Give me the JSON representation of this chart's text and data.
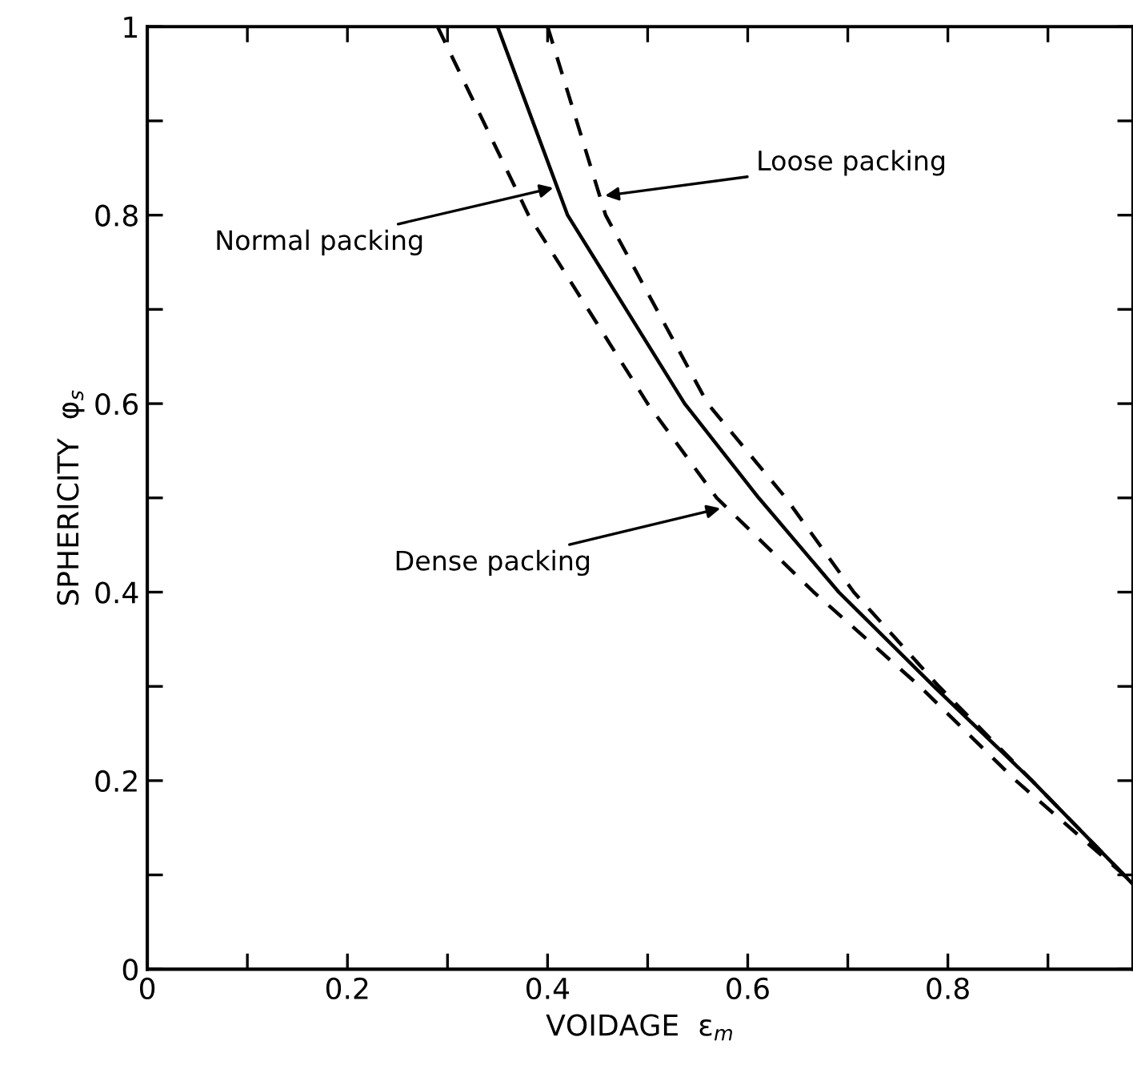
{
  "chart_data": {
    "type": "line",
    "xlabel": "VOIDAGE  ε$_{m}$",
    "ylabel": "SPHERICITY  φ$_{s}$",
    "xlim": [
      0,
      0.985
    ],
    "ylim": [
      0,
      1
    ],
    "xticks": [
      0,
      {
        "value": 0.1,
        "label": null
      },
      0.2,
      {
        "value": 0.3,
        "label": null
      },
      0.4,
      {
        "value": 0.5,
        "label": null
      },
      0.6,
      {
        "value": 0.7,
        "label": null
      },
      0.8,
      {
        "value": 0.9,
        "label": null
      }
    ],
    "yticks": [
      0,
      {
        "value": 0.1,
        "label": null
      },
      0.2,
      {
        "value": 0.3,
        "label": null
      },
      0.4,
      {
        "value": 0.5,
        "label": null
      },
      0.6,
      {
        "value": 0.7,
        "label": null
      },
      0.8,
      {
        "value": 0.9,
        "label": null
      },
      1
    ],
    "grid": false,
    "legend": false,
    "marker": "none",
    "series": [
      {
        "color": "#000000",
        "line_style": "dashed",
        "x": [
          0.29,
          0.381,
          0.5,
          0.569,
          0.666,
          0.772,
          0.868,
          0.976,
          0.985
        ],
        "values": [
          1,
          0.8,
          0.6,
          0.5,
          0.4,
          0.3,
          0.2,
          0.1,
          0.09
        ]
      },
      {
        "color": "#000000",
        "line_style": "solid",
        "x": [
          0.35,
          0.42,
          0.537,
          0.611,
          0.691,
          0.786,
          0.884,
          0.976,
          0.985
        ],
        "values": [
          1,
          0.8,
          0.6,
          0.5,
          0.4,
          0.3,
          0.2,
          0.1,
          0.09
        ]
      },
      {
        "color": "#000000",
        "line_style": "dashed",
        "x": [
          0.4,
          0.458,
          0.56,
          0.638,
          0.706,
          0.791,
          0.884,
          0.976,
          0.985
        ],
        "values": [
          1,
          0.8,
          0.6,
          0.5,
          0.4,
          0.3,
          0.2,
          0.1,
          0.09
        ]
      }
    ],
    "annotations": [
      {
        "text": "Normal packing",
        "x": 0.41,
        "y": 0.83
      },
      {
        "text": "Loose packing",
        "x": 0.453,
        "y": 0.82
      },
      {
        "text": "Dense packing",
        "x": 0.577,
        "y": 0.49
      }
    ]
  }
}
